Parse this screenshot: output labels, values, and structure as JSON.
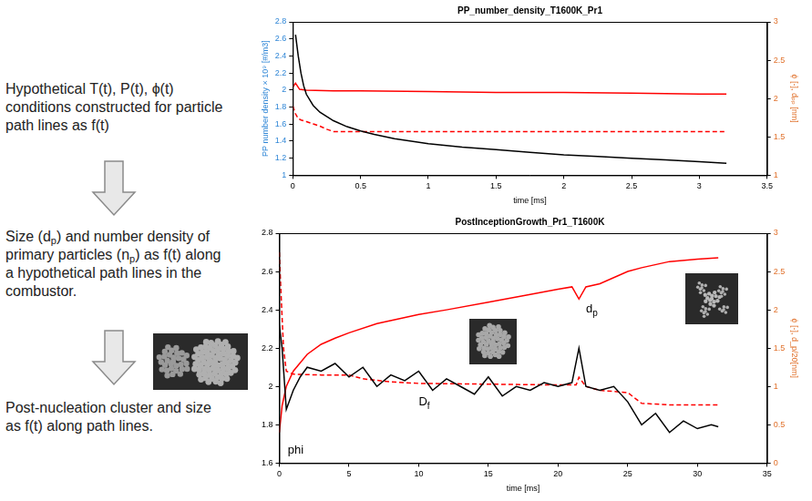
{
  "steps": [
    [
      {
        "text": "Hypothetical T(t), P(t), ϕ(t) conditions constructed for particle path lines as f(t)"
      }
    ],
    [
      {
        "text": "Size ("
      },
      {
        "text": "d"
      },
      {
        "text": "p",
        "sub": true
      },
      {
        "text": ") and number density of primary particles ("
      },
      {
        "text": "n"
      },
      {
        "text": "p",
        "sub": true
      },
      {
        "text": ") as f(t) along a hypothetical path lines in the combustor."
      }
    ],
    [
      {
        "text": "Post-nucleation cluster and size as f(t) along path lines."
      }
    ]
  ],
  "chart_data": [
    {
      "type": "line",
      "title": "PP_number_density_T1600K_Pr1",
      "xlabel": "time [ms]",
      "ylabel": "PP number density × 10⁹ [#/m3]",
      "y2label": "ϕ [-], dₚₚ [nm]",
      "xlim": [
        0,
        3.5
      ],
      "xticks": [
        0,
        0.5,
        1,
        1.5,
        2,
        2.5,
        3,
        3.5
      ],
      "ylim": [
        1,
        2.8
      ],
      "yticks": [
        1,
        1.2,
        1.4,
        1.6,
        1.8,
        2,
        2.2,
        2.4,
        2.6,
        2.8
      ],
      "y2lim": [
        1,
        3
      ],
      "y2ticks": [
        1,
        1.5,
        2,
        2.5,
        3
      ],
      "grid": false,
      "series": [
        {
          "color": "#000000",
          "line_style": "solid",
          "axis": "y",
          "x": [
            0.02,
            0.04,
            0.06,
            0.08,
            0.1,
            0.15,
            0.2,
            0.3,
            0.4,
            0.5,
            0.6,
            0.75,
            1,
            1.25,
            1.5,
            1.75,
            2,
            2.25,
            2.5,
            2.75,
            3,
            3.2
          ],
          "values": [
            2.65,
            2.4,
            2.2,
            2.05,
            1.95,
            1.82,
            1.74,
            1.64,
            1.57,
            1.52,
            1.48,
            1.43,
            1.37,
            1.33,
            1.3,
            1.27,
            1.24,
            1.22,
            1.2,
            1.18,
            1.16,
            1.14
          ]
        },
        {
          "color": "#ff0000",
          "line_style": "solid",
          "axis": "y2",
          "x": [
            0,
            0.02,
            0.05,
            0.1,
            0.3,
            0.5,
            1,
            1.5,
            2,
            2.5,
            3,
            3.2
          ],
          "values": [
            2.15,
            2.2,
            2.12,
            2.11,
            2.1,
            2.1,
            2.09,
            2.08,
            2.08,
            2.07,
            2.06,
            2.06
          ]
        },
        {
          "color": "#ff0000",
          "line_style": "dashed",
          "axis": "y2",
          "x": [
            0,
            0.02,
            0.04,
            0.06,
            0.1,
            0.15,
            0.2,
            0.25,
            0.3,
            0.5,
            1,
            2,
            3,
            3.2
          ],
          "values": [
            1.9,
            1.8,
            1.74,
            1.72,
            1.7,
            1.67,
            1.64,
            1.6,
            1.57,
            1.57,
            1.57,
            1.57,
            1.57,
            1.57
          ]
        }
      ]
    },
    {
      "type": "line",
      "title": "PostInceptionGrowth_Pr1_T1600K",
      "xlabel": "time [ms]",
      "y2label": "ϕ [-], d_p/20[nm]",
      "xlim": [
        0,
        35
      ],
      "xticks": [
        0,
        5,
        10,
        15,
        20,
        25,
        30,
        35
      ],
      "ylim": [
        1.6,
        2.8
      ],
      "yticks": [
        1.6,
        1.8,
        2,
        2.2,
        2.4,
        2.6,
        2.8
      ],
      "y2lim": [
        0,
        3
      ],
      "y2ticks": [
        0,
        0.5,
        1,
        1.5,
        2,
        2.5,
        3
      ],
      "grid": false,
      "series": [
        {
          "color": "#000000",
          "line_style": "solid",
          "axis": "y",
          "x": [
            0,
            0.2,
            0.5,
            1,
            1.5,
            2,
            3,
            4,
            5,
            6,
            7,
            8,
            9,
            10,
            11,
            12,
            13,
            14,
            15,
            16,
            17,
            18,
            19,
            20,
            21,
            21.5,
            22,
            23,
            24,
            25,
            26,
            27,
            28,
            29,
            30,
            31,
            31.5
          ],
          "values": [
            2.32,
            2.2,
            1.88,
            1.98,
            2.05,
            2.1,
            2.08,
            2.12,
            2.05,
            2.1,
            2.0,
            2.06,
            2.03,
            2.08,
            1.98,
            2.04,
            2.0,
            1.96,
            2.05,
            1.95,
            2.0,
            1.98,
            2.02,
            2.0,
            2.02,
            2.2,
            2.0,
            1.98,
            2.0,
            1.92,
            1.8,
            1.86,
            1.76,
            1.82,
            1.78,
            1.8,
            1.79
          ]
        },
        {
          "color": "#ff0000",
          "line_style": "solid",
          "axis": "y2",
          "x": [
            0,
            0.2,
            0.5,
            1,
            2,
            3,
            4,
            5,
            7,
            10,
            12,
            15,
            18,
            20,
            21,
            21.5,
            22,
            23,
            25,
            26,
            28,
            30,
            31.5
          ],
          "values": [
            0.4,
            0.75,
            1.0,
            1.2,
            1.42,
            1.55,
            1.63,
            1.7,
            1.82,
            1.94,
            2.0,
            2.1,
            2.2,
            2.27,
            2.3,
            2.14,
            2.3,
            2.34,
            2.5,
            2.55,
            2.63,
            2.66,
            2.68
          ]
        },
        {
          "color": "#ff0000",
          "line_style": "dashed",
          "axis": "y2",
          "x": [
            0,
            0.1,
            0.3,
            0.5,
            1,
            3,
            5,
            6,
            8,
            10,
            15,
            20,
            21.3,
            21.5,
            22,
            23,
            25,
            26,
            28,
            30,
            31.5
          ],
          "values": [
            2.75,
            2.3,
            1.5,
            1.2,
            1.16,
            1.15,
            1.15,
            1.1,
            1.06,
            1.04,
            1.03,
            1.02,
            1.02,
            1.12,
            1.0,
            0.95,
            0.92,
            0.78,
            0.76,
            0.76,
            0.76
          ]
        }
      ],
      "annotations": [
        {
          "text": [
            {
              "text": "phi"
            }
          ],
          "x": 0.6,
          "y": 0.12,
          "axis": "y2"
        },
        {
          "text": [
            {
              "text": "D"
            },
            {
              "text": "f",
              "sub": true
            }
          ],
          "x": 10,
          "y": 1.9,
          "axis": "y"
        },
        {
          "text": [
            {
              "text": "d"
            },
            {
              "text": "p",
              "sub": true
            }
          ],
          "x": 22,
          "y": 1.97,
          "axis": "y2"
        }
      ]
    }
  ]
}
